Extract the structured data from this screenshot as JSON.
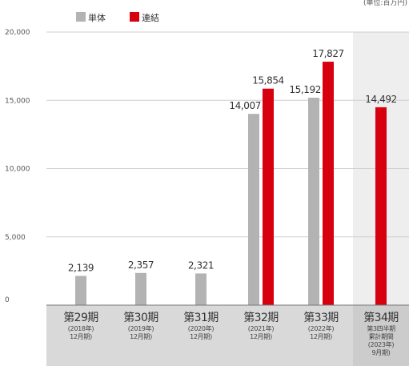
{
  "chart_data": {
    "type": "bar",
    "unit_note": "(単位:百万円)",
    "ylim": [
      0,
      20000
    ],
    "yticks": [
      {
        "value": 0,
        "label": "0"
      },
      {
        "value": 5000,
        "label": "5,000"
      },
      {
        "value": 10000,
        "label": "10,000"
      },
      {
        "value": 15000,
        "label": "15,000"
      },
      {
        "value": 20000,
        "label": "20,000"
      }
    ],
    "categories": [
      {
        "label": "第29期",
        "sub": [
          "(2018年)",
          "12月期)"
        ]
      },
      {
        "label": "第30期",
        "sub": [
          "(2019年)",
          "12月期)"
        ]
      },
      {
        "label": "第31期",
        "sub": [
          "(2020年)",
          "12月期)"
        ]
      },
      {
        "label": "第32期",
        "sub": [
          "(2021年)",
          "12月期)"
        ]
      },
      {
        "label": "第33期",
        "sub": [
          "(2022年)",
          "12月期)"
        ]
      },
      {
        "label": "第34期",
        "sub": [
          "第3四半期",
          "累計期間",
          "(2023年)",
          "9月期)"
        ]
      }
    ],
    "series": [
      {
        "name": "単体",
        "color": "#b3b3b3",
        "values": [
          2139,
          2357,
          2321,
          14007,
          15192,
          null
        ],
        "labels": [
          "2,139",
          "2,357",
          "2,321",
          "14,007",
          "15,192",
          ""
        ]
      },
      {
        "name": "連結",
        "color": "#d7000f",
        "values": [
          null,
          null,
          null,
          15854,
          17827,
          14492
        ],
        "labels": [
          "",
          "",
          "",
          "15,854",
          "17,827",
          "14,492"
        ]
      }
    ],
    "highlight_category": 5,
    "legend_position": "top-left"
  }
}
